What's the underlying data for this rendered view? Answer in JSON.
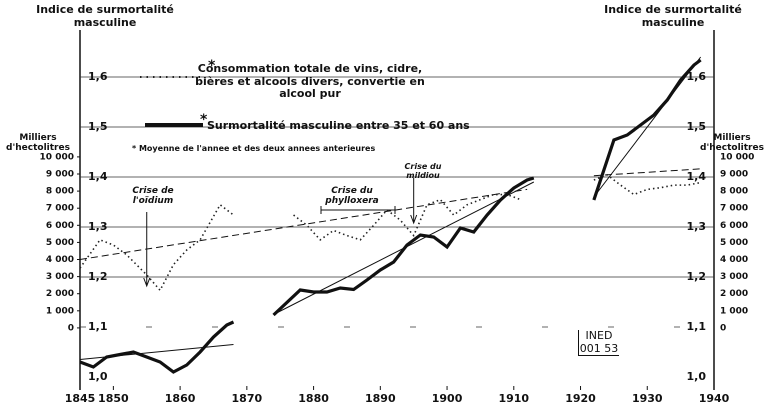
{
  "chart_data": {
    "type": "line",
    "y_axis_title": "Indice de surmortalité masculine",
    "y2_axis_title": "Milliers d'hectolitres",
    "xlim": [
      1845,
      1940
    ],
    "xticks": [
      1845,
      1850,
      1860,
      1870,
      1880,
      1890,
      1900,
      1910,
      1920,
      1930,
      1940
    ],
    "ylim": [
      0.974,
      1.694
    ],
    "yticks": [
      {
        "value": 1.0,
        "label": "1,0"
      },
      {
        "value": 1.1,
        "label": "1,1"
      },
      {
        "value": 1.2,
        "label": "1,2"
      },
      {
        "value": 1.3,
        "label": "1,3"
      },
      {
        "value": 1.4,
        "label": "1,4"
      },
      {
        "value": 1.5,
        "label": "1,5"
      },
      {
        "value": 1.6,
        "label": "1,6"
      }
    ],
    "y2lim": [
      -3630,
      17420
    ],
    "y2ticks": [
      0,
      {
        "value": 1000,
        "label": "1 000"
      },
      {
        "value": 2000,
        "label": "2 000"
      },
      {
        "value": 3000,
        "label": "3 000"
      },
      {
        "value": 4000,
        "label": "4 000"
      },
      {
        "value": 5000,
        "label": "5 000"
      },
      {
        "value": 6000,
        "label": "6 000"
      },
      {
        "value": 7000,
        "label": "7 000"
      },
      {
        "value": 8000,
        "label": "8 000"
      },
      {
        "value": 9000,
        "label": "9 000"
      },
      {
        "value": 10000,
        "label": "10 000"
      }
    ],
    "grid": true,
    "legend_marker": "*",
    "footnote": "* Moyenne de l'annee et des deux annees anterieures",
    "series": [
      {
        "name": "Consommation totale de vins, cidre, bières et alcools divers, convertie en alcool pur",
        "color": "#222",
        "style": "dotted",
        "axis": "y2",
        "x": [
          1845,
          1848,
          1850,
          1852,
          1855,
          1857,
          1859,
          1861,
          1863,
          1866,
          1868,
          1872,
          1877,
          1879,
          1881,
          1883,
          1885,
          1887,
          1889,
          1891,
          1893,
          1895,
          1897,
          1899,
          1901,
          1903,
          1905,
          1907,
          1909,
          1911,
          1917,
          1922,
          1924,
          1926,
          1928,
          1930,
          1932,
          1934,
          1936,
          1938
        ],
        "values": [
          3500,
          5150,
          4850,
          4270,
          3100,
          2200,
          3700,
          4560,
          5150,
          7200,
          6600,
          null,
          6600,
          6000,
          5150,
          5700,
          5400,
          5150,
          6000,
          6900,
          6300,
          5400,
          7200,
          7500,
          6600,
          7200,
          7500,
          7800,
          7800,
          7500,
          null,
          8650,
          8950,
          8350,
          7800,
          8100,
          8200,
          8350,
          8350,
          8500
        ]
      },
      {
        "name": "Surmortalité masculine entre 35 et 60 ans",
        "color": "#111",
        "style": "solid",
        "x": [
          1845,
          1847,
          1849,
          1851,
          1853,
          1855,
          1857,
          1859,
          1861,
          1863,
          1865,
          1867,
          1868,
          1870,
          1874,
          1878,
          1880,
          1882,
          1884,
          1886,
          1888,
          1890,
          1892,
          1894,
          1896,
          1898,
          1900,
          1902,
          1904,
          1906,
          1908,
          1910,
          1912,
          1913,
          1917,
          1922,
          1924,
          1925,
          1927,
          1929,
          1931,
          1933,
          1935,
          1937,
          1938
        ],
        "values": [
          1.03,
          1.02,
          1.04,
          1.045,
          1.05,
          1.04,
          1.03,
          1.01,
          1.024,
          1.05,
          1.08,
          1.104,
          1.11,
          null,
          1.124,
          1.174,
          1.17,
          1.17,
          1.178,
          1.175,
          1.194,
          1.214,
          1.23,
          1.264,
          1.284,
          1.28,
          1.26,
          1.298,
          1.29,
          1.324,
          1.354,
          1.378,
          1.394,
          1.398,
          null,
          1.354,
          1.434,
          1.474,
          1.484,
          1.504,
          1.524,
          1.554,
          1.594,
          1.624,
          1.634
        ]
      }
    ],
    "trend_lines": [
      {
        "x": [
          1845,
          1868,
          1870,
          1874,
          1913,
          1917,
          1922,
          1938
        ],
        "values": [
          1.035,
          1.065,
          null,
          1.125,
          1.39,
          null,
          1.36,
          1.64
        ],
        "style": "solid"
      },
      {
        "x": [
          1845,
          1912,
          1917,
          1922,
          1938
        ],
        "values": [
          4000,
          8100,
          null,
          8900,
          9300
        ],
        "style": "dashed",
        "axis": "y2"
      }
    ],
    "annotations": [
      {
        "text": "Crise de l'oïdium",
        "x": 1855
      },
      {
        "text": "Crise du phylloxera",
        "x": 1886
      },
      {
        "text": "Crise du mildiou",
        "x": 1895
      }
    ],
    "stamp": [
      "INED",
      "001 53"
    ]
  }
}
